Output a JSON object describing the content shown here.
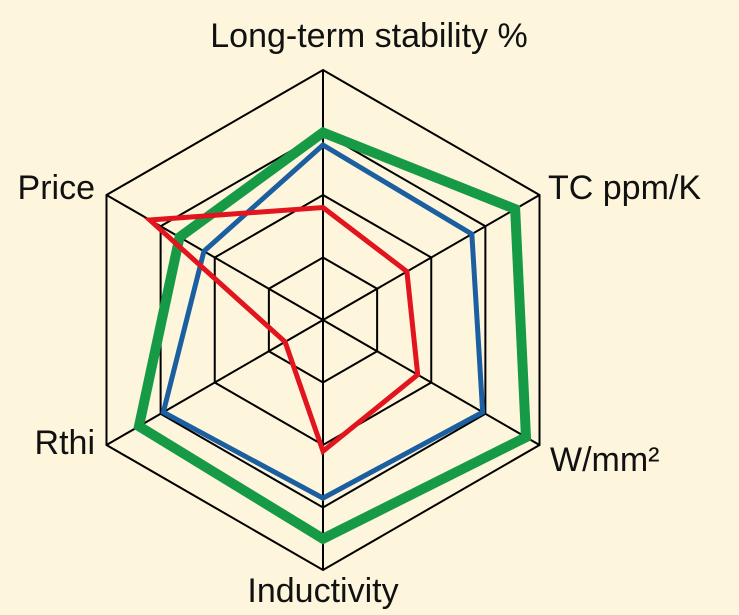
{
  "chart_data": {
    "type": "radar",
    "categories": [
      "Long-term stability %",
      "TC ppm/K",
      "W/mm²",
      "Inductivity",
      "Rthi",
      "Price"
    ],
    "series": [
      {
        "color": "#169a46",
        "values": [
          3.0,
          3.55,
          3.75,
          3.5,
          3.4,
          2.65
        ]
      },
      {
        "color": "#1c5fa0",
        "values": [
          2.8,
          2.75,
          2.95,
          2.85,
          2.95,
          2.2
        ]
      },
      {
        "color": "#e2141e",
        "values": [
          1.8,
          1.55,
          1.75,
          2.1,
          0.7,
          3.2
        ]
      }
    ],
    "rlim": [
      0,
      4
    ],
    "rticks": [
      1,
      2,
      3,
      4
    ],
    "grid": true
  }
}
